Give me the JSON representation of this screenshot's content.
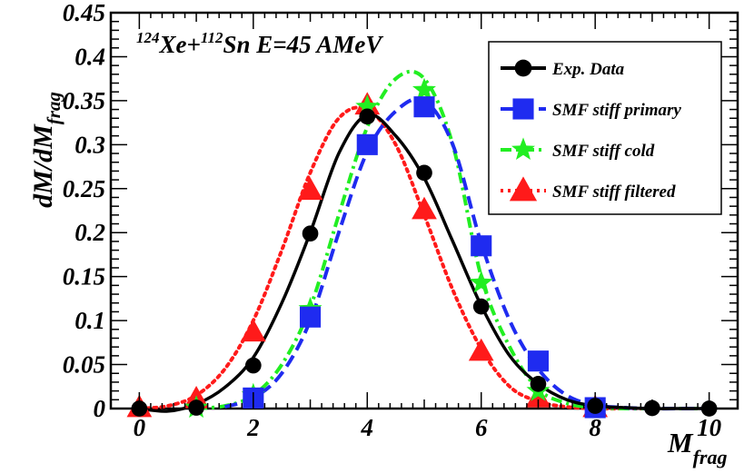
{
  "chart_data": {
    "type": "line",
    "title": "",
    "annotation": {
      "sup1": "124",
      "part1": "Xe+",
      "sup2": "112",
      "part2": "Sn E=45 AMeV"
    },
    "xlabel": {
      "main": "M",
      "sub": "frag"
    },
    "ylabel": {
      "main": "dM/dM",
      "sub": "frag"
    },
    "xlim": [
      -0.5,
      10.5
    ],
    "ylim": [
      0,
      0.45
    ],
    "xticks": [
      0,
      2,
      4,
      6,
      8,
      10
    ],
    "yticks": [
      0,
      0.05,
      0.1,
      0.15,
      0.2,
      0.25,
      0.3,
      0.35,
      0.4,
      0.45
    ],
    "ytick_labels": [
      "0",
      "0.05",
      "0.1",
      "0.15",
      "0.2",
      "0.25",
      "0.3",
      "0.35",
      "0.4",
      "0.45"
    ],
    "legend_position": "top-right",
    "series": [
      {
        "name": "Exp. Data",
        "color": "#000000",
        "marker": "circle",
        "line_style": "solid",
        "x": [
          0,
          1,
          2,
          3,
          4,
          5,
          6,
          7,
          8,
          9,
          10
        ],
        "values": [
          0,
          0.001,
          0.049,
          0.199,
          0.332,
          0.268,
          0.116,
          0.028,
          0.003,
          0.0005,
          0
        ],
        "curve_x": [
          0,
          0.5,
          1,
          1.5,
          2,
          2.5,
          3,
          3.5,
          4,
          4.5,
          5,
          5.5,
          6,
          6.5,
          7,
          7.5,
          8,
          8.5,
          9,
          9.5,
          10
        ],
        "curve_y": [
          0,
          -0.003,
          0.005,
          0.024,
          0.058,
          0.12,
          0.2,
          0.29,
          0.334,
          0.31,
          0.262,
          0.19,
          0.117,
          0.06,
          0.028,
          0.01,
          0.003,
          0.001,
          0,
          0,
          0
        ]
      },
      {
        "name": "SMF stiff primary",
        "color": "#1f2bf0",
        "marker": "square",
        "line_style": "dashed",
        "x": [
          2,
          3,
          4,
          5,
          6,
          7,
          8
        ],
        "values": [
          0.012,
          0.104,
          0.3,
          0.343,
          0.185,
          0.054,
          0.001
        ],
        "curve_x": [
          1.5,
          2,
          2.5,
          3,
          3.5,
          4,
          4.5,
          5,
          5.5,
          6,
          6.5,
          7,
          7.5,
          8,
          8.5,
          9,
          9.5,
          10
        ],
        "curve_y": [
          0.002,
          0.012,
          0.04,
          0.1,
          0.2,
          0.292,
          0.338,
          0.35,
          0.3,
          0.188,
          0.1,
          0.045,
          0.015,
          0.004,
          0.001,
          0,
          0,
          0
        ]
      },
      {
        "name": "SMF stiff cold",
        "color": "#22ee22",
        "marker": "star",
        "line_style": "dash-dot",
        "x": [
          1,
          2,
          3,
          4,
          5,
          6,
          7,
          8
        ],
        "values": [
          0.001,
          0.015,
          0.113,
          0.343,
          0.362,
          0.143,
          0.02,
          0.001
        ],
        "curve_x": [
          1,
          1.5,
          2,
          2.5,
          3,
          3.5,
          4,
          4.5,
          5,
          5.5,
          6,
          6.5,
          7,
          7.5,
          8,
          8.5,
          9,
          9.5,
          10
        ],
        "curve_y": [
          0,
          0.003,
          0.015,
          0.05,
          0.115,
          0.22,
          0.32,
          0.375,
          0.375,
          0.3,
          0.15,
          0.07,
          0.022,
          0.006,
          0.001,
          0,
          0,
          0,
          0
        ]
      },
      {
        "name": "SMF stiff filtered",
        "color": "#ff1a1a",
        "marker": "triangle",
        "line_style": "dotted",
        "x": [
          0,
          1,
          2,
          3,
          4,
          5,
          6,
          7,
          8
        ],
        "values": [
          0.001,
          0.011,
          0.087,
          0.248,
          0.345,
          0.226,
          0.065,
          0.012,
          0.001
        ],
        "curve_x": [
          0,
          0.5,
          1,
          1.5,
          2,
          2.5,
          3,
          3.5,
          4,
          4.5,
          5,
          5.5,
          6,
          6.5,
          7,
          7.5,
          8,
          8.5,
          9
        ],
        "curve_y": [
          0,
          0.003,
          0.015,
          0.045,
          0.1,
          0.18,
          0.268,
          0.33,
          0.34,
          0.3,
          0.22,
          0.135,
          0.068,
          0.025,
          0.008,
          0.002,
          0,
          0,
          0
        ]
      }
    ]
  }
}
